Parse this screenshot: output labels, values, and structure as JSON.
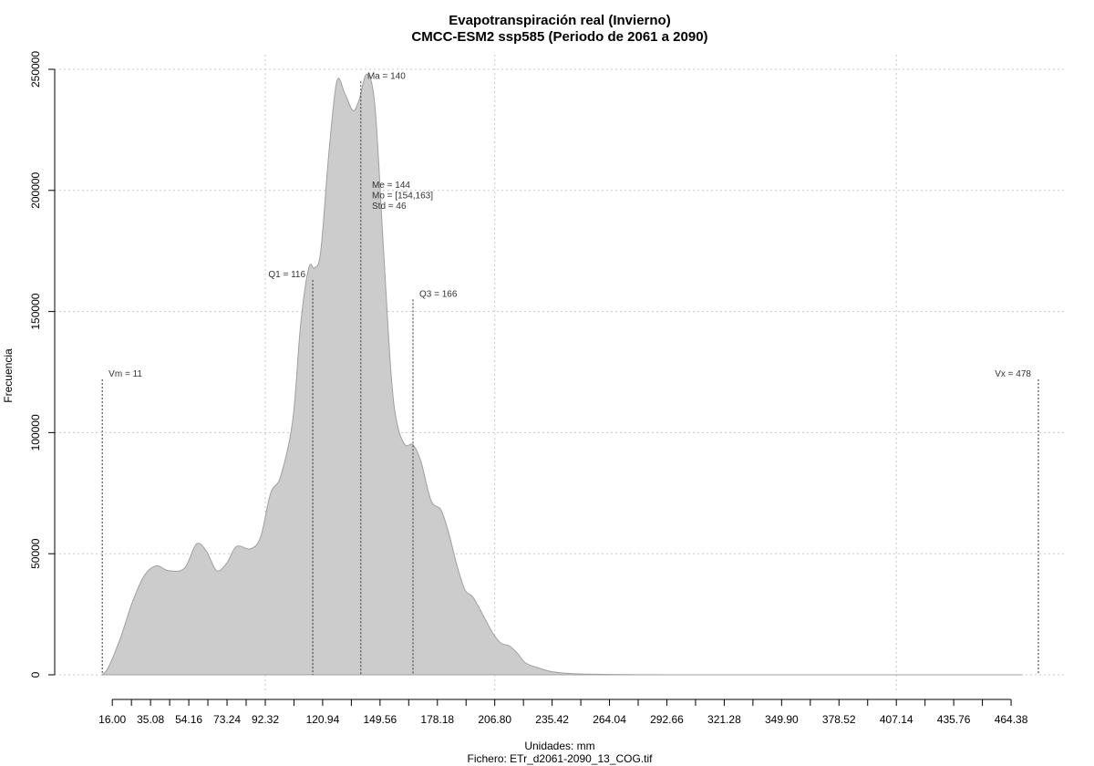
{
  "chart_data": {
    "type": "area",
    "title": "Evapotranspiración real (Invierno)",
    "subtitle": "CMCC-ESM2 ssp585 (Periodo de 2061 a 2090)",
    "xlabel": "Unidades: mm",
    "ylabel": "Frecuencia",
    "footer": "Fichero: ETr_d2061-2090_13_COG.tif",
    "xlim": [
      0,
      478
    ],
    "ylim": [
      0,
      250000
    ],
    "y_ticks": [
      0,
      50000,
      100000,
      150000,
      200000,
      250000
    ],
    "x_ticks": [
      "16.00",
      "35.08",
      "54.16",
      "73.24",
      "92.32",
      "120.94",
      "149.56",
      "178.18",
      "206.80",
      "235.42",
      "264.04",
      "292.66",
      "321.28",
      "349.90",
      "378.52",
      "407.14",
      "435.76",
      "464.38"
    ],
    "x_tick_values": [
      16.0,
      35.08,
      54.16,
      73.24,
      92.32,
      120.94,
      149.56,
      178.18,
      206.8,
      235.42,
      264.04,
      292.66,
      321.28,
      349.9,
      378.52,
      407.14,
      435.76,
      464.38
    ],
    "grid": true,
    "fill_color": "#cccccc",
    "line_color": "#a0a0a0",
    "x": [
      11,
      14,
      20,
      26,
      32,
      38,
      44,
      52,
      58,
      63,
      68,
      73,
      78,
      85,
      90,
      95,
      100,
      106,
      110,
      114,
      117,
      120,
      124,
      128,
      132,
      136,
      139,
      143,
      147,
      151,
      155,
      158,
      162,
      166,
      170,
      175,
      180,
      184,
      188,
      192,
      196,
      202,
      206,
      210,
      214,
      218,
      222,
      228,
      234,
      240,
      248,
      256,
      264,
      274,
      284,
      296,
      310,
      330,
      360,
      400,
      440,
      470
    ],
    "values": [
      0,
      3000,
      15000,
      30000,
      41000,
      45000,
      43000,
      44000,
      54000,
      51000,
      43000,
      46000,
      53000,
      52000,
      57000,
      75000,
      82000,
      105000,
      145000,
      168000,
      168000,
      175000,
      215000,
      245000,
      240000,
      233000,
      237000,
      248000,
      235000,
      180000,
      125000,
      104000,
      95000,
      95000,
      88000,
      72000,
      68000,
      58000,
      45000,
      35000,
      32000,
      23000,
      17000,
      13000,
      12000,
      9000,
      5000,
      3000,
      1500,
      800,
      400,
      250,
      150,
      80,
      40,
      20,
      10,
      5,
      2,
      1,
      0,
      0
    ],
    "vlines": [
      {
        "x": 11,
        "label": "Vm = 11",
        "top": 122000,
        "label_pos": "right"
      },
      {
        "x": 116,
        "label": "Q1 = 116",
        "top": 163000,
        "label_pos": "left"
      },
      {
        "x": 140,
        "label": "Ma = 140",
        "top": 245000,
        "label_pos": "right"
      },
      {
        "x": 166,
        "label": "Q3 = 166",
        "top": 155000,
        "label_pos": "right"
      },
      {
        "x": 478,
        "label": "Vx = 478",
        "top": 122000,
        "label_pos": "left"
      }
    ],
    "stats": [
      "Me = 144",
      "Mo = [154,163]",
      "Std = 46"
    ]
  }
}
